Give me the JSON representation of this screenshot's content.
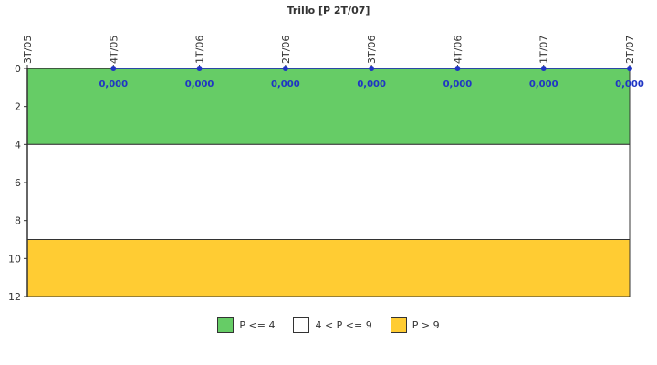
{
  "chart_data": {
    "type": "line",
    "title": "Trillo [P 2T/07]",
    "categories": [
      "3T/05",
      "4T/05",
      "1T/06",
      "2T/06",
      "3T/06",
      "4T/06",
      "1T/07",
      "2T/07"
    ],
    "y_ticks": [
      0,
      2,
      4,
      6,
      8,
      10,
      12
    ],
    "ylim": [
      0,
      12
    ],
    "y_inverted": true,
    "series": [
      {
        "values": [
          null,
          0,
          0,
          0,
          0,
          0,
          0,
          0
        ],
        "data_labels": [
          "",
          "0,000",
          "0,000",
          "0,000",
          "0,000",
          "0,000",
          "0,000",
          "0,000"
        ],
        "color": "#1f35c4"
      }
    ],
    "bands": [
      {
        "from": 0,
        "to": 4,
        "color": "#66cc66",
        "label": "P <= 4"
      },
      {
        "from": 4,
        "to": 9,
        "color": "#ffffff",
        "label": "4 < P <= 9"
      },
      {
        "from": 9,
        "to": 12,
        "color": "#ffcc33",
        "label": "P > 9"
      }
    ],
    "grid": false,
    "legend_position": "bottom"
  }
}
